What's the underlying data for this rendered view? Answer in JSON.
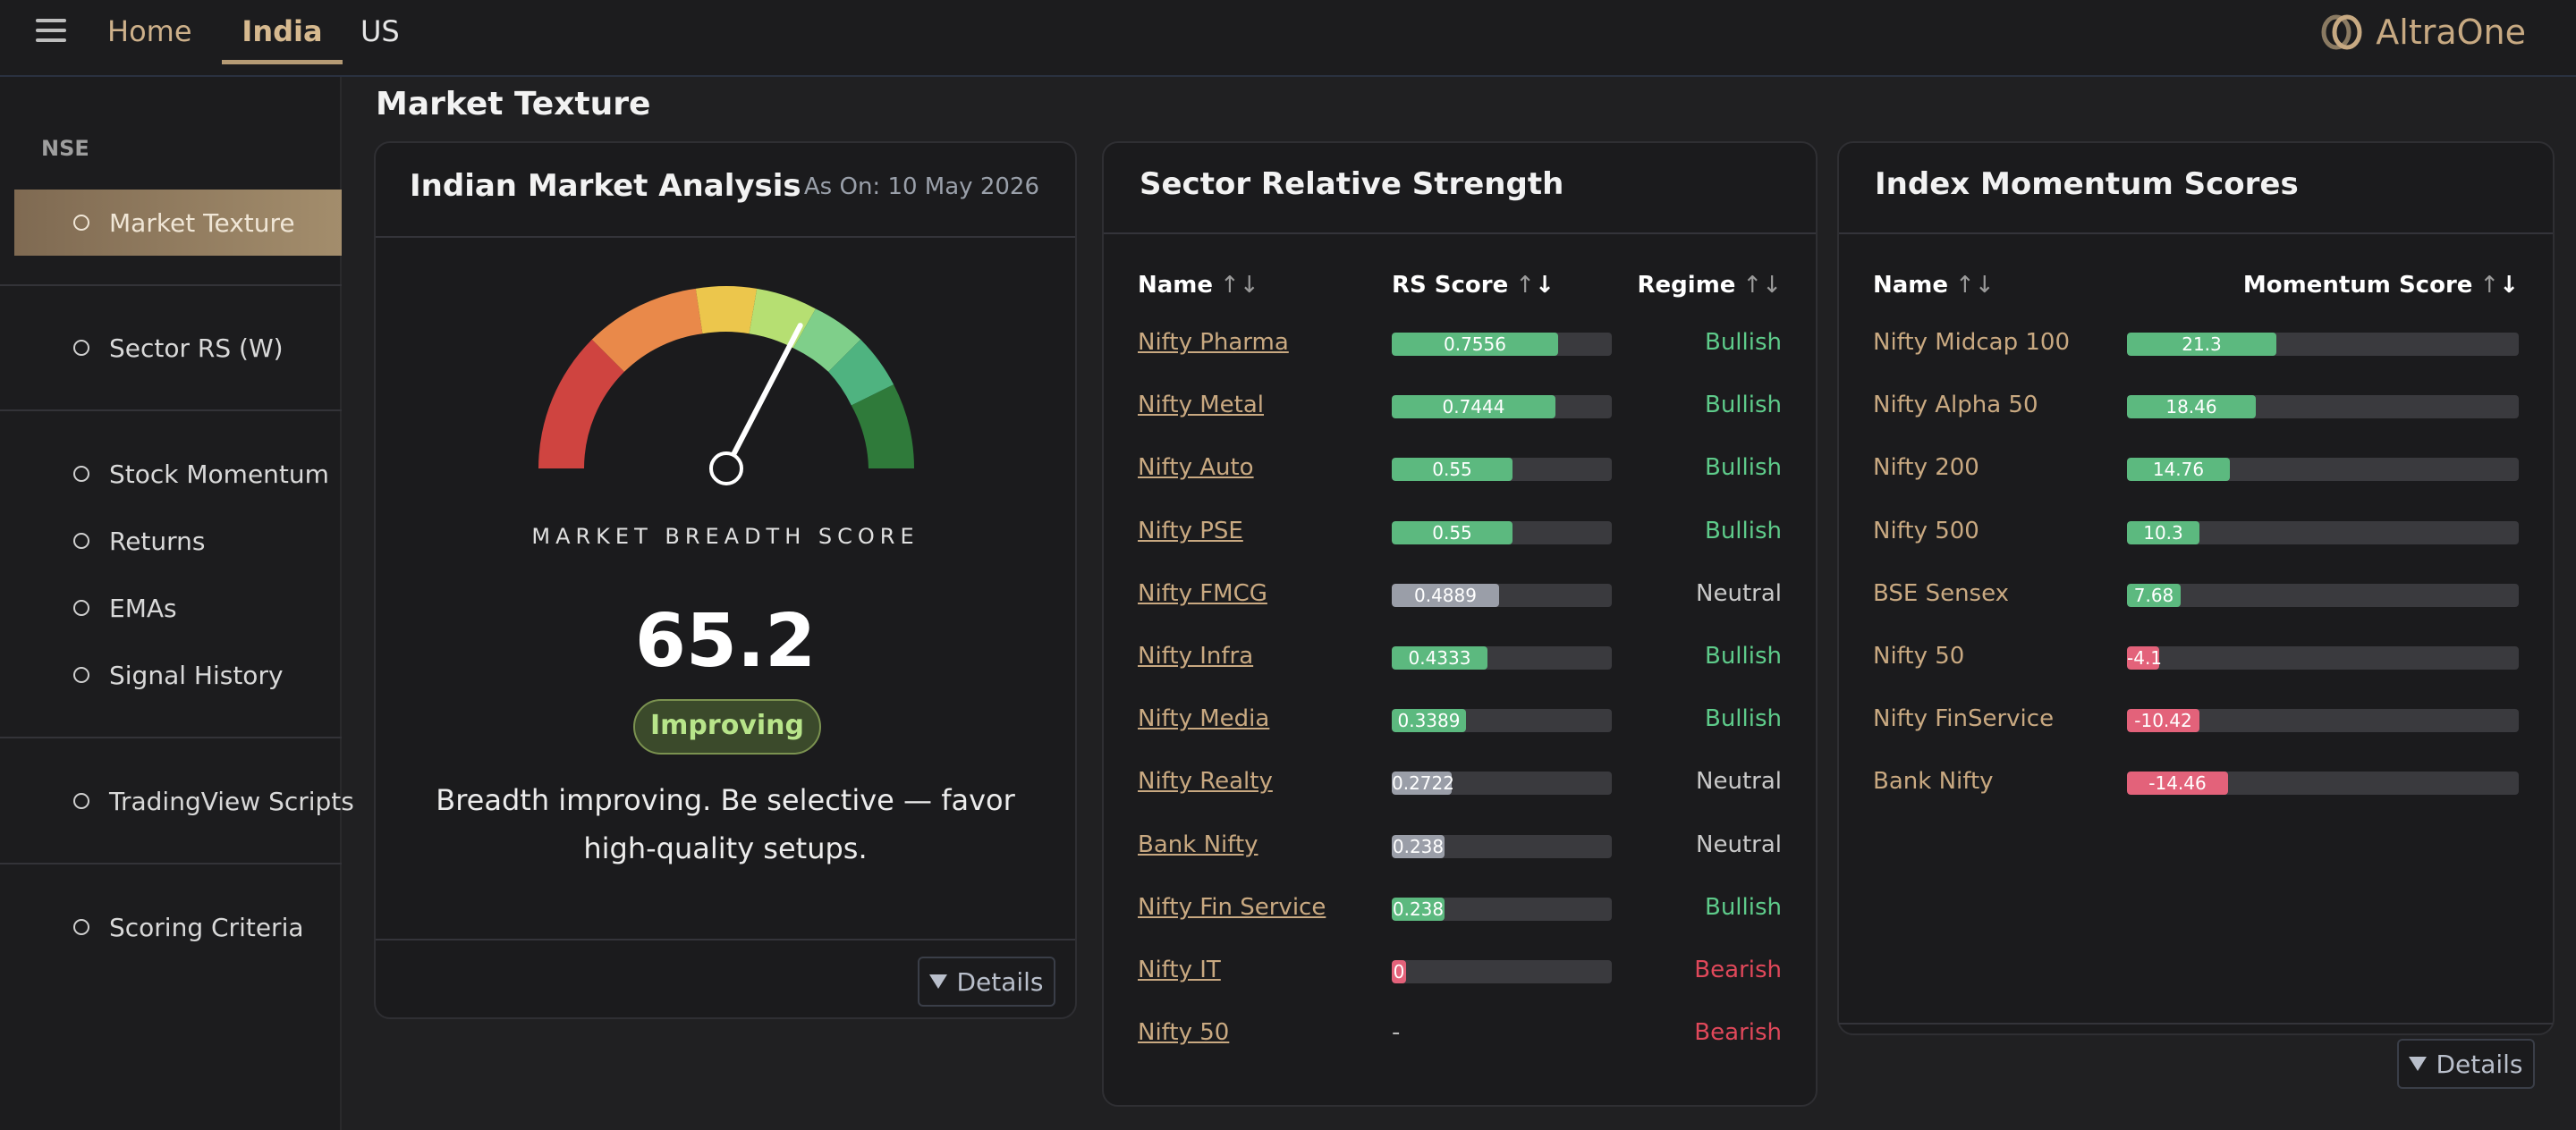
{
  "topbar": {
    "nav": [
      "Home",
      "India",
      "US"
    ],
    "brand": "AltraOne"
  },
  "sidebar": {
    "heading": "NSE",
    "items": [
      {
        "label": "Market Texture",
        "active": true
      },
      {
        "label": "Sector RS (W)"
      },
      {
        "label": "Stock Momentum"
      },
      {
        "label": "Returns"
      },
      {
        "label": "EMAs"
      },
      {
        "label": "Signal History"
      },
      {
        "label": "TradingView Scripts"
      },
      {
        "label": "Scoring Criteria"
      }
    ]
  },
  "page": {
    "title": "Market Texture"
  },
  "analysis": {
    "title": "Indian Market Analysis",
    "as_of": "As On: 10 May 2026",
    "gauge_label": "MARKET BREADTH SCORE",
    "score": "65.2",
    "score_value": 65.2,
    "status": "Improving",
    "description": "Breadth improving. Be selective — favor high-quality setups.",
    "details": "Details"
  },
  "sector": {
    "title": "Sector Relative Strength",
    "columns": [
      "Name",
      "RS Score",
      "Regime"
    ],
    "rows": [
      {
        "name": "Nifty Pharma",
        "score": "0.7556",
        "value": 0.7556,
        "regime": "Bullish"
      },
      {
        "name": "Nifty Metal",
        "score": "0.7444",
        "value": 0.7444,
        "regime": "Bullish"
      },
      {
        "name": "Nifty Auto",
        "score": "0.55",
        "value": 0.55,
        "regime": "Bullish"
      },
      {
        "name": "Nifty PSE",
        "score": "0.55",
        "value": 0.55,
        "regime": "Bullish"
      },
      {
        "name": "Nifty FMCG",
        "score": "0.4889",
        "value": 0.4889,
        "regime": "Neutral"
      },
      {
        "name": "Nifty Infra",
        "score": "0.4333",
        "value": 0.4333,
        "regime": "Bullish"
      },
      {
        "name": "Nifty Media",
        "score": "0.3389",
        "value": 0.3389,
        "regime": "Bullish"
      },
      {
        "name": "Nifty Realty",
        "score": "0.2722",
        "value": 0.2722,
        "regime": "Neutral"
      },
      {
        "name": "Bank Nifty",
        "score": "0.238",
        "value": 0.238,
        "regime": "Neutral"
      },
      {
        "name": "Nifty Fin Service",
        "score": "0.238",
        "value": 0.238,
        "regime": "Bullish"
      },
      {
        "name": "Nifty IT",
        "score": "0",
        "value": 0,
        "regime": "Bearish"
      },
      {
        "name": "Nifty 50",
        "score": "-",
        "value": null,
        "regime": "Bearish"
      }
    ]
  },
  "momentum": {
    "title": "Index Momentum Scores",
    "columns": [
      "Name",
      "Momentum Score"
    ],
    "details": "Details",
    "rows": [
      {
        "name": "Nifty Midcap 100",
        "score": "21.3",
        "value": 21.3
      },
      {
        "name": "Nifty Alpha 50",
        "score": "18.46",
        "value": 18.46
      },
      {
        "name": "Nifty 200",
        "score": "14.76",
        "value": 14.76
      },
      {
        "name": "Nifty 500",
        "score": "10.3",
        "value": 10.3
      },
      {
        "name": "BSE Sensex",
        "score": "7.68",
        "value": 7.68
      },
      {
        "name": "Nifty 50",
        "score": "-4.1",
        "value": -4.1
      },
      {
        "name": "Nifty FinService",
        "score": "-10.42",
        "value": -10.42
      },
      {
        "name": "Bank Nifty",
        "score": "-14.46",
        "value": -14.46
      }
    ]
  },
  "colors": {
    "bullish": "#5ecb8a",
    "neutral": "#c9c9c9",
    "bearish": "#e0485a",
    "bar_green": "#5cb97f",
    "bar_grey": "#9a9ea8",
    "bar_red": "#e3627a",
    "accent": "#b59a74"
  }
}
